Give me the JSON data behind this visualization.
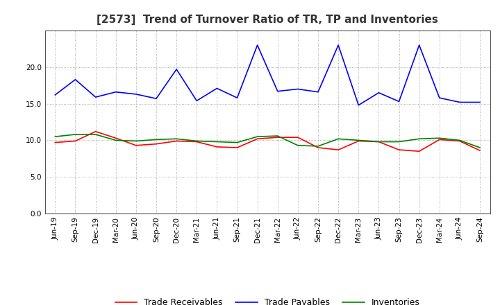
{
  "title": "[2573]  Trend of Turnover Ratio of TR, TP and Inventories",
  "x_labels": [
    "Jun-19",
    "Sep-19",
    "Dec-19",
    "Mar-20",
    "Jun-20",
    "Sep-20",
    "Dec-20",
    "Mar-21",
    "Jun-21",
    "Sep-21",
    "Dec-21",
    "Mar-22",
    "Jun-22",
    "Sep-22",
    "Dec-22",
    "Mar-23",
    "Jun-23",
    "Sep-23",
    "Dec-23",
    "Mar-24",
    "Jun-24",
    "Sep-24"
  ],
  "trade_receivables": [
    9.7,
    9.9,
    11.2,
    10.3,
    9.3,
    9.5,
    9.9,
    9.8,
    9.1,
    9.0,
    10.2,
    10.4,
    10.4,
    9.0,
    8.7,
    9.9,
    9.8,
    8.7,
    8.5,
    10.1,
    9.9,
    8.6
  ],
  "trade_payables": [
    16.2,
    18.3,
    15.9,
    16.6,
    16.3,
    15.7,
    19.7,
    15.4,
    17.1,
    15.8,
    23.0,
    16.7,
    17.0,
    16.6,
    23.0,
    14.8,
    16.5,
    15.3,
    23.0,
    15.8,
    15.2,
    15.2
  ],
  "inventories": [
    10.5,
    10.8,
    10.8,
    10.0,
    9.9,
    10.1,
    10.2,
    9.9,
    9.8,
    9.7,
    10.5,
    10.6,
    9.3,
    9.2,
    10.2,
    10.0,
    9.8,
    9.8,
    10.2,
    10.3,
    10.0,
    9.0
  ],
  "tr_color": "#ff0000",
  "tp_color": "#0000ff",
  "inv_color": "#008000",
  "ylim": [
    0,
    25
  ],
  "yticks": [
    0.0,
    5.0,
    10.0,
    15.0,
    20.0
  ],
  "background_color": "#ffffff",
  "plot_bg_color": "#ffffff",
  "grid_color": "#999999",
  "title_fontsize": 11,
  "legend_fontsize": 9,
  "tick_fontsize": 7.5
}
